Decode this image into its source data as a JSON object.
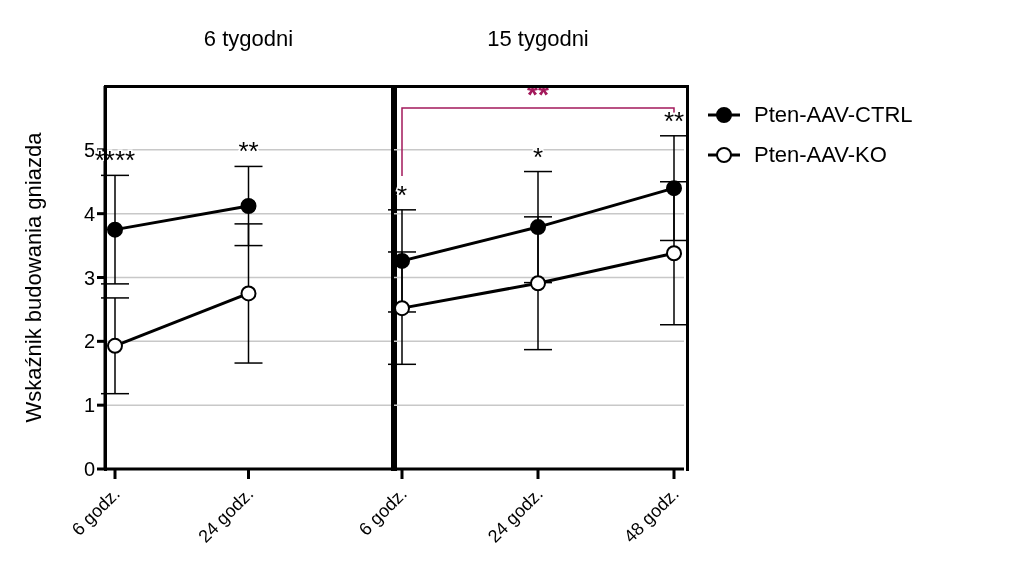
{
  "chart_data": [
    {
      "type": "line",
      "title": "6 tygodni",
      "ylabel": "Wskaźnik budowania gniazda",
      "categories": [
        "6 godz.",
        "24 godz.",
        null
      ],
      "series": [
        {
          "color": "#000000",
          "values": [
            3.75,
            4.12,
            null
          ],
          "errors": [
            0.85,
            0.62,
            null
          ]
        },
        {
          "color": "#ffffff",
          "values": [
            1.93,
            2.75,
            null
          ],
          "errors": [
            0.75,
            1.09,
            null
          ]
        }
      ],
      "ylim": [
        0,
        6
      ],
      "yticks": [
        0,
        1,
        2,
        3,
        4,
        5
      ],
      "grid": "y",
      "marker": "circle",
      "line_style": "solid",
      "annotations": [
        "****",
        "**"
      ]
    },
    {
      "type": "line",
      "title": "15 tygodni",
      "categories": [
        "6 godz.",
        "24 godz.",
        "48 godz."
      ],
      "series": [
        {
          "name": "Pten-AAV-CTRL",
          "color": "#000000",
          "values": [
            3.26,
            3.79,
            4.4
          ],
          "errors": [
            0.8,
            0.87,
            0.82
          ]
        },
        {
          "name": "Pten-AAV-KO",
          "color": "#ffffff",
          "values": [
            2.52,
            2.91,
            3.38
          ],
          "errors": [
            0.88,
            1.04,
            1.12
          ]
        }
      ],
      "ylim": [
        0,
        6
      ],
      "yticks": [
        0,
        1,
        2,
        3,
        4,
        5
      ],
      "grid": "y",
      "marker": "circle",
      "line_style": "solid",
      "legend": "top right",
      "tick_labels": "x",
      "annotations": [
        "*",
        "*",
        "**",
        "**"
      ]
    }
  ]
}
